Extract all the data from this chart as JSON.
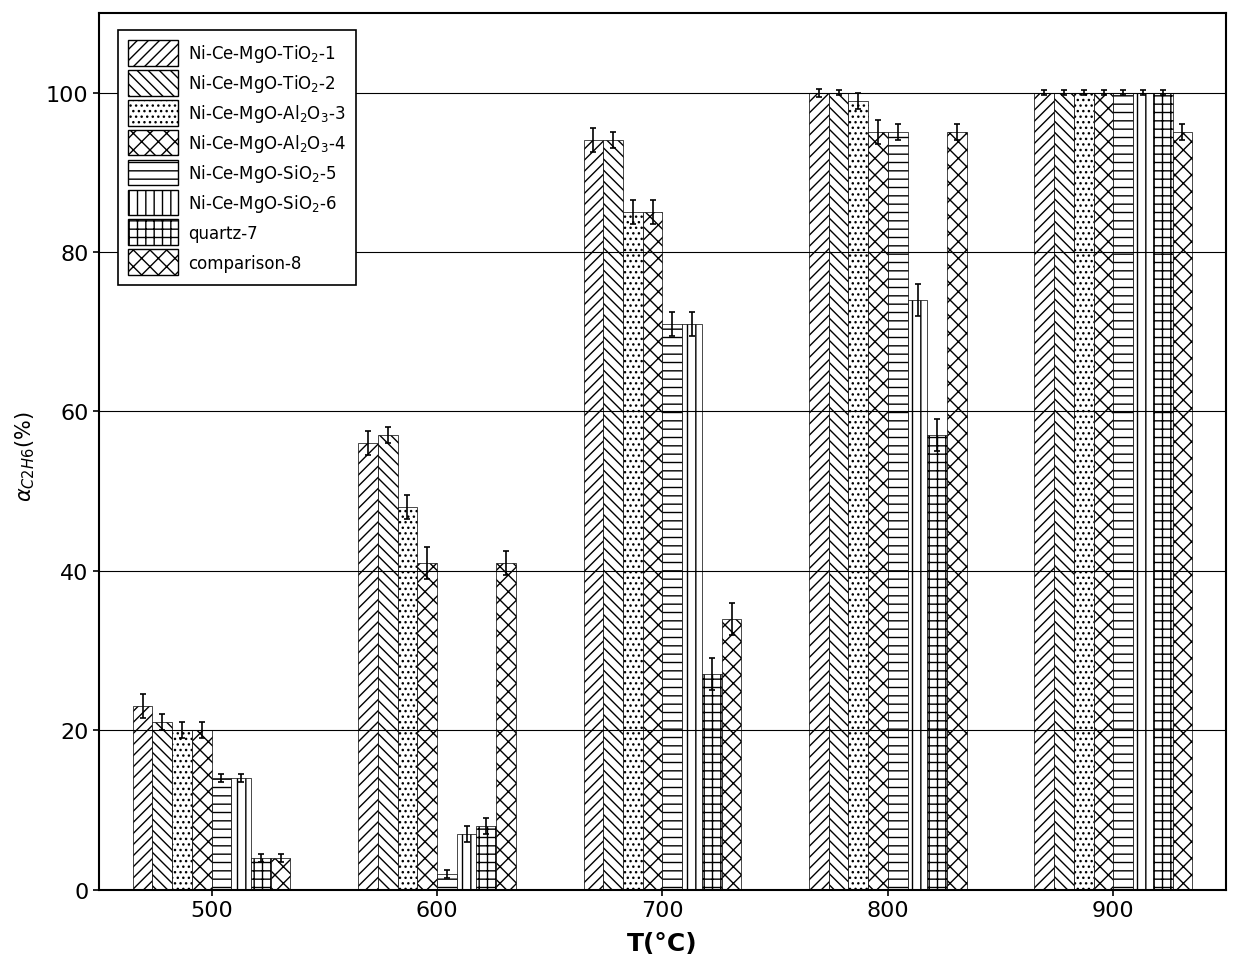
{
  "temperatures": [
    500,
    600,
    700,
    800,
    900
  ],
  "legend_labels": [
    "Ni-Ce-MgO-TiO$_2$-1",
    "Ni-Ce-MgO-TiO$_2$-2",
    "Ni-Ce-MgO-Al$_2$O$_3$-3",
    "Ni-Ce-MgO-Al$_2$O$_3$-4",
    "Ni-Ce-MgO-SiO$_2$-5",
    "Ni-Ce-MgO-SiO$_2$-6",
    "quartz-7",
    "comparison-8"
  ],
  "values": [
    [
      23,
      56,
      94,
      100,
      100
    ],
    [
      21,
      57,
      94,
      100,
      100
    ],
    [
      20,
      48,
      85,
      99,
      100
    ],
    [
      20,
      41,
      85,
      95,
      100
    ],
    [
      14,
      2,
      71,
      95,
      100
    ],
    [
      14,
      7,
      71,
      74,
      100
    ],
    [
      4,
      8,
      27,
      57,
      100
    ],
    [
      4,
      41,
      34,
      95,
      95
    ]
  ],
  "errors": [
    [
      1.5,
      1.5,
      1.5,
      0.5,
      0.3
    ],
    [
      1.0,
      1.0,
      1.0,
      0.3,
      0.3
    ],
    [
      1.0,
      1.5,
      1.5,
      1.0,
      0.3
    ],
    [
      1.0,
      2.0,
      1.5,
      1.5,
      0.3
    ],
    [
      0.5,
      0.5,
      1.5,
      1.0,
      0.3
    ],
    [
      0.5,
      1.0,
      1.5,
      2.0,
      0.3
    ],
    [
      0.5,
      1.0,
      2.0,
      2.0,
      0.3
    ],
    [
      0.5,
      1.5,
      2.0,
      1.0,
      1.0
    ]
  ],
  "ylabel": "$\\alpha_{C2H6}$(%)  ",
  "xlabel": "T(°C)",
  "ylim": [
    0,
    110
  ],
  "yticks": [
    0,
    20,
    40,
    60,
    80,
    100
  ],
  "xtick_labels": [
    "500",
    "600",
    "700",
    "800",
    "900"
  ],
  "figsize": [
    12.4,
    9.7
  ],
  "dpi": 100
}
